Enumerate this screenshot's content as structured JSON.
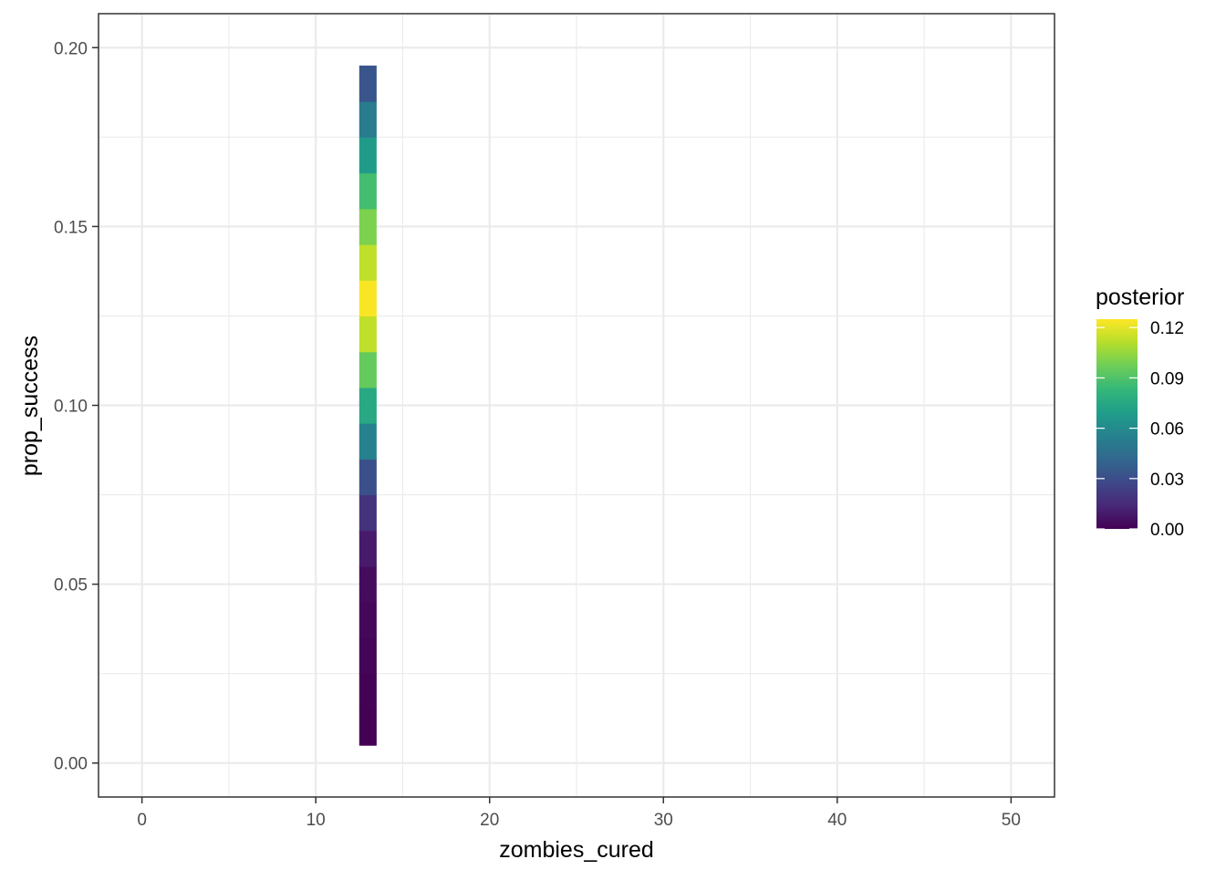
{
  "chart_data": {
    "type": "heatmap",
    "xlabel": "zombies_cured",
    "ylabel": "prop_success",
    "xlim": [
      -2.5,
      52.5
    ],
    "ylim": [
      -0.0095,
      0.2095
    ],
    "x_ticks": [
      0,
      10,
      20,
      30,
      40,
      50
    ],
    "x_tick_labels": [
      "0",
      "10",
      "20",
      "30",
      "40",
      "50"
    ],
    "y_ticks": [
      0.0,
      0.05,
      0.1,
      0.15,
      0.2
    ],
    "y_tick_labels": [
      "0.00",
      "0.05",
      "0.10",
      "0.15",
      "0.20"
    ],
    "grid": true,
    "tile_width": 1,
    "tile_height": 0.01,
    "tiles": [
      {
        "x": 13,
        "y": 0.01,
        "posterior": 0.0
      },
      {
        "x": 13,
        "y": 0.02,
        "posterior": 0.0005
      },
      {
        "x": 13,
        "y": 0.03,
        "posterior": 0.001
      },
      {
        "x": 13,
        "y": 0.04,
        "posterior": 0.002
      },
      {
        "x": 13,
        "y": 0.05,
        "posterior": 0.004
      },
      {
        "x": 13,
        "y": 0.06,
        "posterior": 0.009
      },
      {
        "x": 13,
        "y": 0.07,
        "posterior": 0.018
      },
      {
        "x": 13,
        "y": 0.08,
        "posterior": 0.031
      },
      {
        "x": 13,
        "y": 0.09,
        "posterior": 0.055
      },
      {
        "x": 13,
        "y": 0.1,
        "posterior": 0.075
      },
      {
        "x": 13,
        "y": 0.11,
        "posterior": 0.095
      },
      {
        "x": 13,
        "y": 0.12,
        "posterior": 0.113
      },
      {
        "x": 13,
        "y": 0.13,
        "posterior": 0.124
      },
      {
        "x": 13,
        "y": 0.14,
        "posterior": 0.113
      },
      {
        "x": 13,
        "y": 0.15,
        "posterior": 0.1
      },
      {
        "x": 13,
        "y": 0.16,
        "posterior": 0.087
      },
      {
        "x": 13,
        "y": 0.17,
        "posterior": 0.068
      },
      {
        "x": 13,
        "y": 0.18,
        "posterior": 0.052
      },
      {
        "x": 13,
        "y": 0.19,
        "posterior": 0.033
      }
    ],
    "legend": {
      "title": "posterior",
      "placement": "right",
      "min": 0.0,
      "max": 0.125,
      "breaks": [
        0.0,
        0.03,
        0.06,
        0.09,
        0.12
      ],
      "break_labels": [
        "0.00",
        "0.03",
        "0.06",
        "0.09",
        "0.12"
      ],
      "palette": "viridis",
      "colors": [
        "#440154",
        "#482878",
        "#3e4989",
        "#31688e",
        "#26828e",
        "#1f9e89",
        "#35b779",
        "#6ece58",
        "#b5de2b",
        "#fde725"
      ]
    }
  }
}
